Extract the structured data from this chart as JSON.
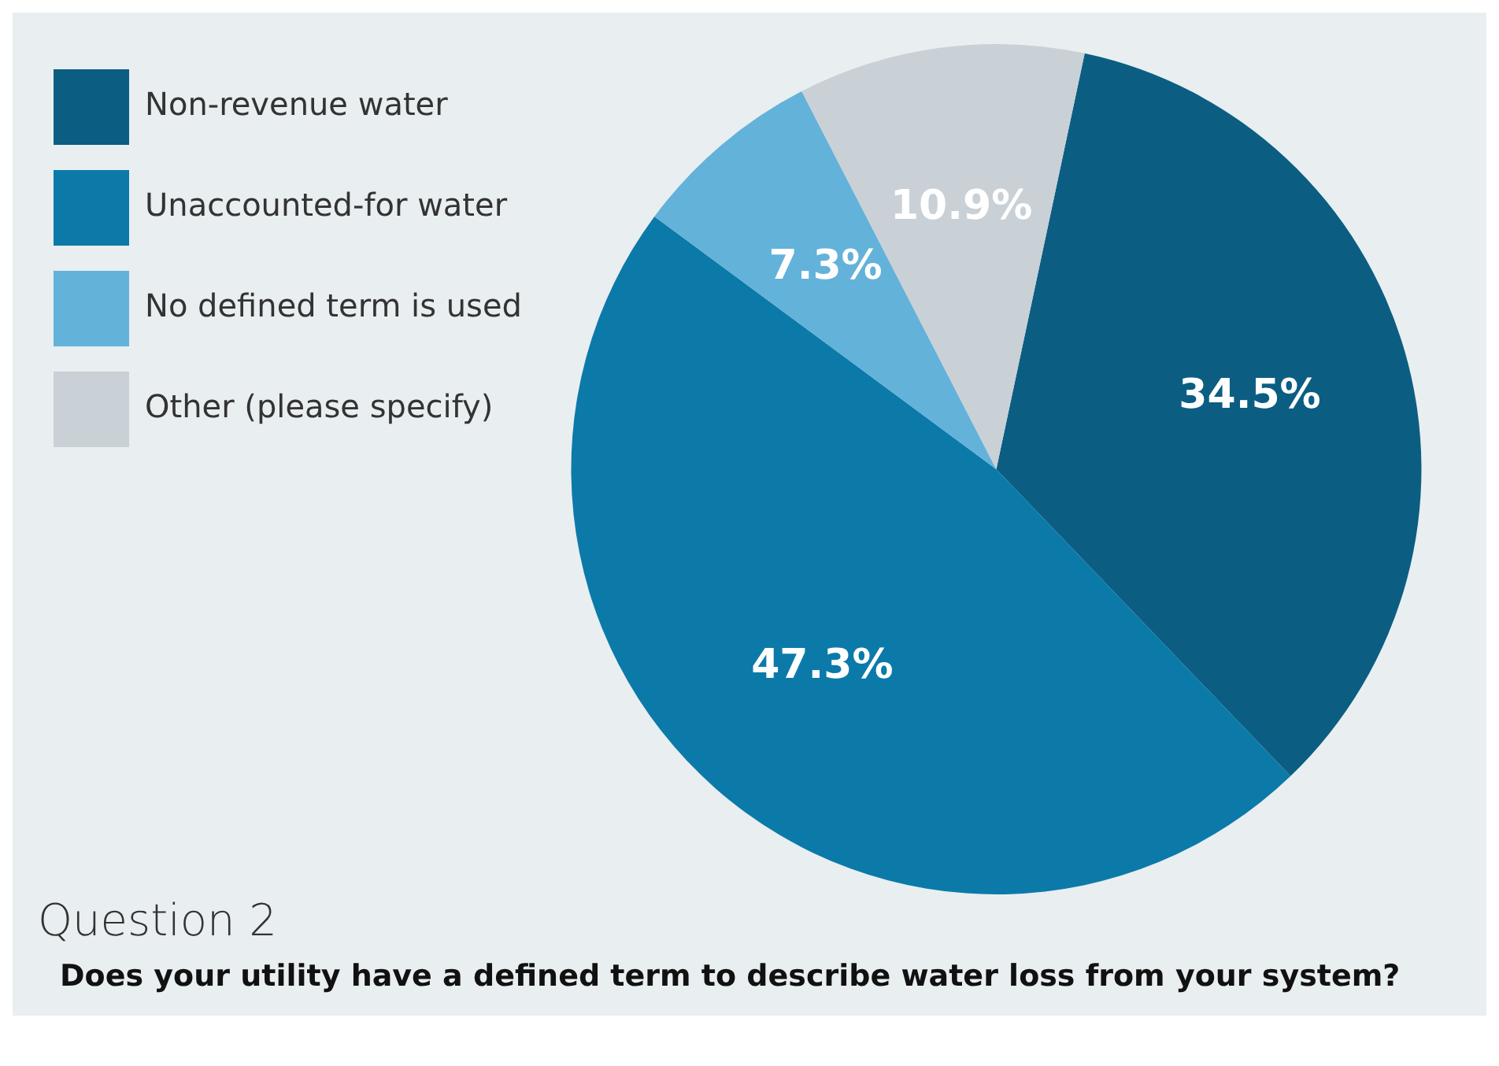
{
  "chart_data": {
    "type": "pie",
    "title": "Question 2",
    "subtitle": "Does your utility have a defined term to describe water loss from your system?",
    "categories": [
      "Non-revenue water",
      "Unaccounted-for water",
      "No defined term is used",
      "Other (please specify)"
    ],
    "values": [
      34.5,
      47.3,
      7.3,
      10.9
    ],
    "colors": [
      "#0b5e82",
      "#0b7aa9",
      "#63b2da",
      "#c9d0d6"
    ],
    "value_labels": [
      "34.5%",
      "47.3%",
      "7.3%",
      "10.9%"
    ],
    "legend": "top left"
  }
}
